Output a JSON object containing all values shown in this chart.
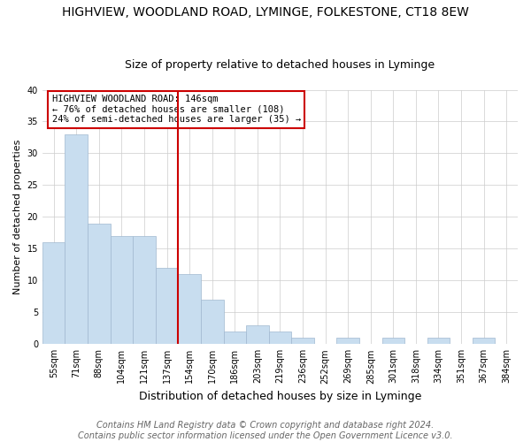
{
  "title": "HIGHVIEW, WOODLAND ROAD, LYMINGE, FOLKESTONE, CT18 8EW",
  "subtitle": "Size of property relative to detached houses in Lyminge",
  "xlabel": "Distribution of detached houses by size in Lyminge",
  "ylabel": "Number of detached properties",
  "categories": [
    "55sqm",
    "71sqm",
    "88sqm",
    "104sqm",
    "121sqm",
    "137sqm",
    "154sqm",
    "170sqm",
    "186sqm",
    "203sqm",
    "219sqm",
    "236sqm",
    "252sqm",
    "269sqm",
    "285sqm",
    "301sqm",
    "318sqm",
    "334sqm",
    "351sqm",
    "367sqm",
    "384sqm"
  ],
  "values": [
    16,
    33,
    19,
    17,
    17,
    12,
    11,
    7,
    2,
    3,
    2,
    1,
    0,
    1,
    0,
    1,
    0,
    1,
    0,
    1,
    0
  ],
  "bar_color": "#c8ddef",
  "bar_edge_color": "#a0b8d0",
  "vline_color": "#cc0000",
  "annotation_title": "HIGHVIEW WOODLAND ROAD: 146sqm",
  "annotation_line2": "← 76% of detached houses are smaller (108)",
  "annotation_line3": "24% of semi-detached houses are larger (35) →",
  "annotation_box_edge_color": "#cc0000",
  "ylim": [
    0,
    40
  ],
  "yticks": [
    0,
    5,
    10,
    15,
    20,
    25,
    30,
    35,
    40
  ],
  "footnote1": "Contains HM Land Registry data © Crown copyright and database right 2024.",
  "footnote2": "Contains public sector information licensed under the Open Government Licence v3.0.",
  "bg_color": "#ffffff",
  "grid_color": "#cccccc",
  "title_fontsize": 10,
  "subtitle_fontsize": 9,
  "xlabel_fontsize": 9,
  "ylabel_fontsize": 8,
  "tick_fontsize": 7,
  "footnote_fontsize": 7,
  "ann_fontsize": 7.5
}
